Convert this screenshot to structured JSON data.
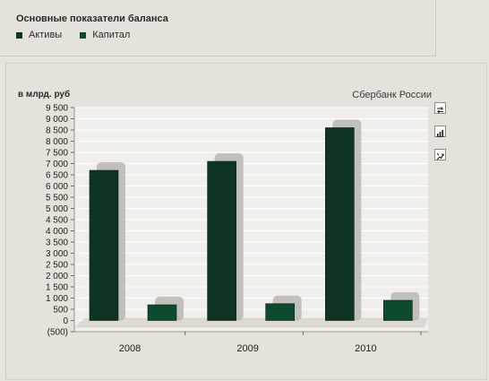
{
  "header": {
    "title": "Основные показатели баланса"
  },
  "legend": {
    "items": [
      {
        "label": "Активы",
        "color": "#0f3522"
      },
      {
        "label": "Капитал",
        "color": "#0d4a2e"
      }
    ]
  },
  "chart_header": {
    "unit": "в млрд. руб",
    "company": "Сбербанк России"
  },
  "toolbar": {
    "icons": [
      "swap-icon",
      "bar-chart-icon",
      "fit-icon"
    ]
  },
  "colors": {
    "assets": "#0f3522",
    "capital": "#0d4a2e",
    "plot_background": "#f1efeb",
    "shadow": "#b9b7b1"
  },
  "chart_data": {
    "type": "bar",
    "categories": [
      "2008",
      "2009",
      "2010"
    ],
    "series": [
      {
        "name": "Активы",
        "values": [
          6700,
          7100,
          8600
        ]
      },
      {
        "name": "Капитал",
        "values": [
          700,
          750,
          900
        ]
      }
    ],
    "ylim": [
      -500,
      9500
    ],
    "yticks": [
      -500,
      0,
      500,
      1000,
      1500,
      2000,
      2500,
      3000,
      3500,
      4000,
      4500,
      5000,
      5500,
      6000,
      6500,
      7000,
      7500,
      8000,
      8500,
      9000,
      9500
    ],
    "ytick_labels": [
      "(500)",
      "0",
      "500",
      "1 000",
      "1 500",
      "2 000",
      "2 500",
      "3 000",
      "3 500",
      "4 000",
      "4 500",
      "5 000",
      "5 500",
      "6 000",
      "6 500",
      "7 000",
      "7 500",
      "8 000",
      "8 500",
      "9 000",
      "9 500"
    ],
    "ylabel": "в млрд. руб",
    "grid": true,
    "legend_position": "top-left"
  }
}
